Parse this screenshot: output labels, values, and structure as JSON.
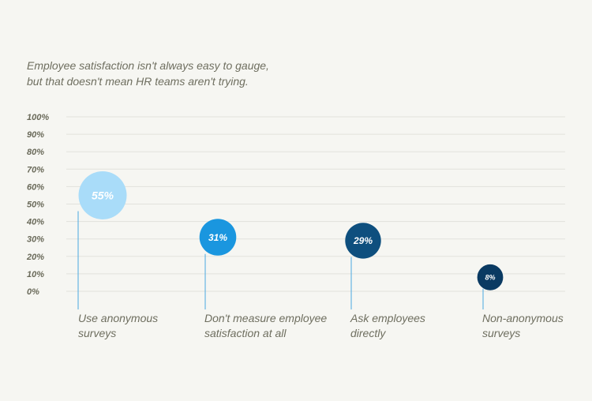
{
  "subtitle_lines": [
    "Employee satisfaction isn't always easy to gauge,",
    "but that doesn't mean HR teams aren't trying."
  ],
  "chart_data": {
    "type": "bubble",
    "title": "",
    "xlabel": "",
    "ylabel": "",
    "ylim": [
      0,
      100
    ],
    "y_ticks": [
      "0%",
      "10%",
      "20%",
      "30%",
      "40%",
      "50%",
      "60%",
      "70%",
      "80%",
      "90%",
      "100%"
    ],
    "grid": true,
    "categories": [
      [
        "Use anonymous",
        "surveys"
      ],
      [
        "Don't measure employee",
        "satisfaction at all"
      ],
      [
        "Ask employees",
        "directly"
      ],
      [
        "Non-anonymous",
        "surveys"
      ]
    ],
    "values": [
      55,
      31,
      29,
      8
    ],
    "data_labels": [
      "55%",
      "31%",
      "29%",
      "8%"
    ],
    "colors": [
      "#a9dcf9",
      "#1a96df",
      "#0e4f7e",
      "#0a3a62"
    ],
    "grid_color": "#e2e2dc",
    "stem_color": "#4aa8e0"
  }
}
